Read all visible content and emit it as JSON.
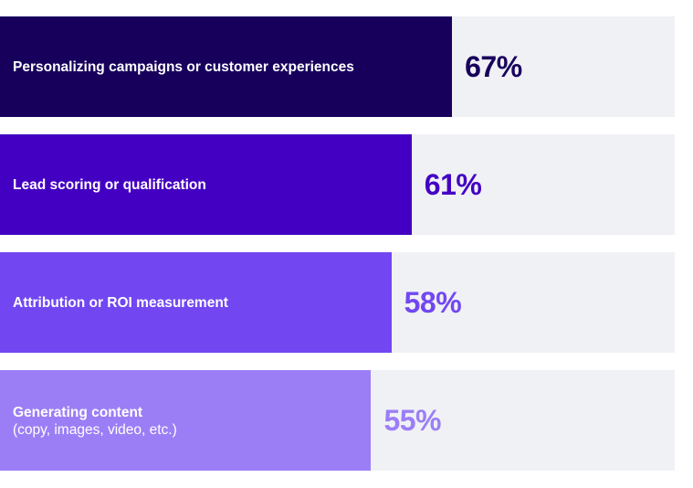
{
  "chart_data": {
    "type": "bar",
    "orientation": "horizontal",
    "categories": [
      "Personalizing campaigns or customer experiences",
      "Lead scoring or qualification",
      "Attribution or ROI measurement",
      "Generating content"
    ],
    "subtitles": [
      "",
      "",
      "",
      "(copy, images, video, etc.)"
    ],
    "values": [
      67,
      61,
      58,
      55
    ],
    "value_labels": [
      "67%",
      "61%",
      "58%",
      "55%"
    ],
    "xlim": [
      0,
      100
    ],
    "grid": false,
    "colors": [
      "#17005c",
      "#4400c2",
      "#7247f2",
      "#9b7ef6"
    ],
    "track_color": "#f0f1f5",
    "value_colors": [
      "#17005c",
      "#4400c2",
      "#7247f2",
      "#9b7ef6"
    ]
  }
}
